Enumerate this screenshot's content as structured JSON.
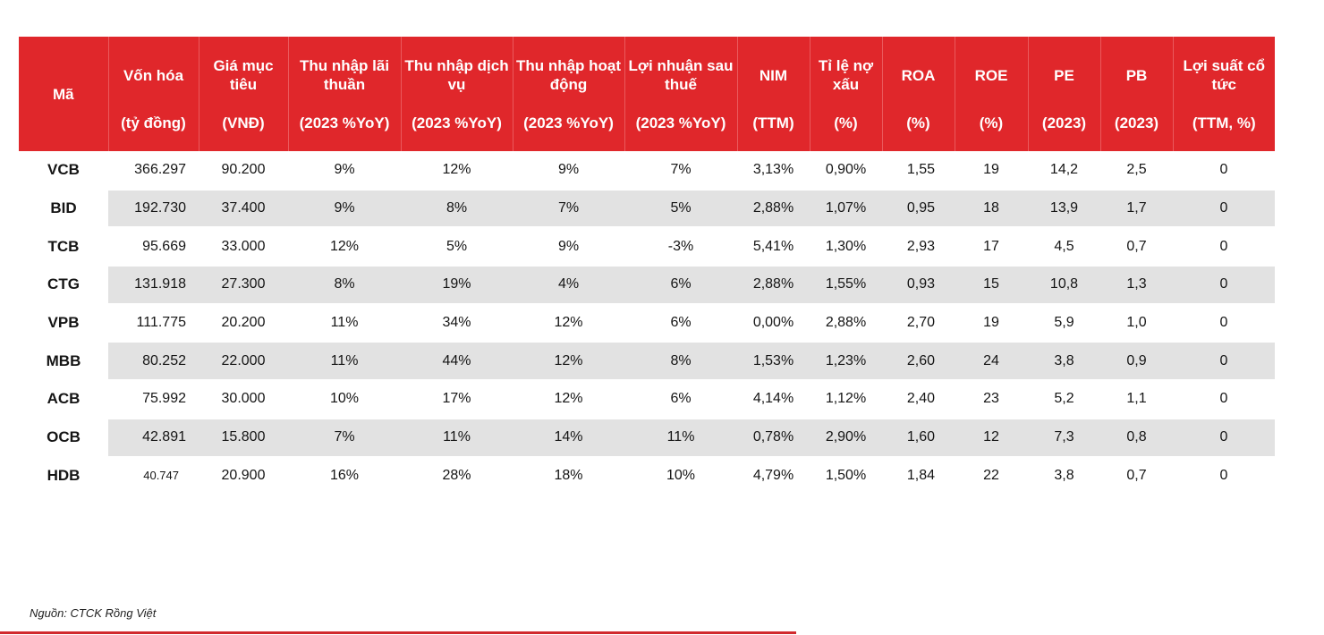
{
  "header": {
    "code": "Mã",
    "columns": [
      {
        "title": "Vốn hóa",
        "unit": "(tỷ đồng)"
      },
      {
        "title": "Giá mục tiêu",
        "unit": "(VNĐ)"
      },
      {
        "title": "Thu nhập lãi thuần",
        "unit": "(2023 %YoY)"
      },
      {
        "title": "Thu nhập dịch vụ",
        "unit": "(2023 %YoY)"
      },
      {
        "title": "Thu nhập hoạt động",
        "unit": "(2023 %YoY)"
      },
      {
        "title": "Lợi nhuận sau thuế",
        "unit": "(2023 %YoY)"
      },
      {
        "title": "NIM",
        "unit": "(TTM)"
      },
      {
        "title": "Tỉ lệ nợ xấu",
        "unit": "(%)"
      },
      {
        "title": "ROA",
        "unit": "(%)"
      },
      {
        "title": "ROE",
        "unit": "(%)"
      },
      {
        "title": "PE",
        "unit": "(2023)"
      },
      {
        "title": "PB",
        "unit": "(2023)"
      },
      {
        "title": "Lợi suất cổ tức",
        "unit": "(TTM, %)"
      }
    ]
  },
  "rows": [
    {
      "code": "VCB",
      "cells": [
        "366.297",
        "90.200",
        "9%",
        "12%",
        "9%",
        "7%",
        "3,13%",
        "0,90%",
        "1,55",
        "19",
        "14,2",
        "2,5",
        "0"
      ]
    },
    {
      "code": "BID",
      "cells": [
        "192.730",
        "37.400",
        "9%",
        "8%",
        "7%",
        "5%",
        "2,88%",
        "1,07%",
        "0,95",
        "18",
        "13,9",
        "1,7",
        "0"
      ]
    },
    {
      "code": "TCB",
      "cells": [
        "95.669",
        "33.000",
        "12%",
        "5%",
        "9%",
        "-3%",
        "5,41%",
        "1,30%",
        "2,93",
        "17",
        "4,5",
        "0,7",
        "0"
      ]
    },
    {
      "code": "CTG",
      "cells": [
        "131.918",
        "27.300",
        "8%",
        "19%",
        "4%",
        "6%",
        "2,88%",
        "1,55%",
        "0,93",
        "15",
        "10,8",
        "1,3",
        "0"
      ]
    },
    {
      "code": "VPB",
      "cells": [
        "111.775",
        "20.200",
        "11%",
        "34%",
        "12%",
        "6%",
        "0,00%",
        "2,88%",
        "2,70",
        "19",
        "5,9",
        "1,0",
        "0"
      ]
    },
    {
      "code": "MBB",
      "cells": [
        "80.252",
        "22.000",
        "11%",
        "44%",
        "12%",
        "8%",
        "1,53%",
        "1,23%",
        "2,60",
        "24",
        "3,8",
        "0,9",
        "0"
      ]
    },
    {
      "code": "ACB",
      "cells": [
        "75.992",
        "30.000",
        "10%",
        "17%",
        "12%",
        "6%",
        "4,14%",
        "1,12%",
        "2,40",
        "23",
        "5,2",
        "1,1",
        "0"
      ]
    },
    {
      "code": "OCB",
      "cells": [
        "42.891",
        "15.800",
        "7%",
        "11%",
        "14%",
        "11%",
        "0,78%",
        "2,90%",
        "1,60",
        "12",
        "7,3",
        "0,8",
        "0"
      ]
    },
    {
      "code": "HDB",
      "cells": [
        "40.747",
        "20.900",
        "16%",
        "28%",
        "18%",
        "10%",
        "4,79%",
        "1,50%",
        "1,84",
        "22",
        "3,8",
        "0,7",
        "0"
      ]
    }
  ],
  "footer": {
    "source": "Nguồn: CTCK Rồng Việt"
  },
  "colors": {
    "header_bg": "#e0272b",
    "alt_row_bg": "#e2e2e2",
    "bottom_rule": "#d12a2e"
  }
}
